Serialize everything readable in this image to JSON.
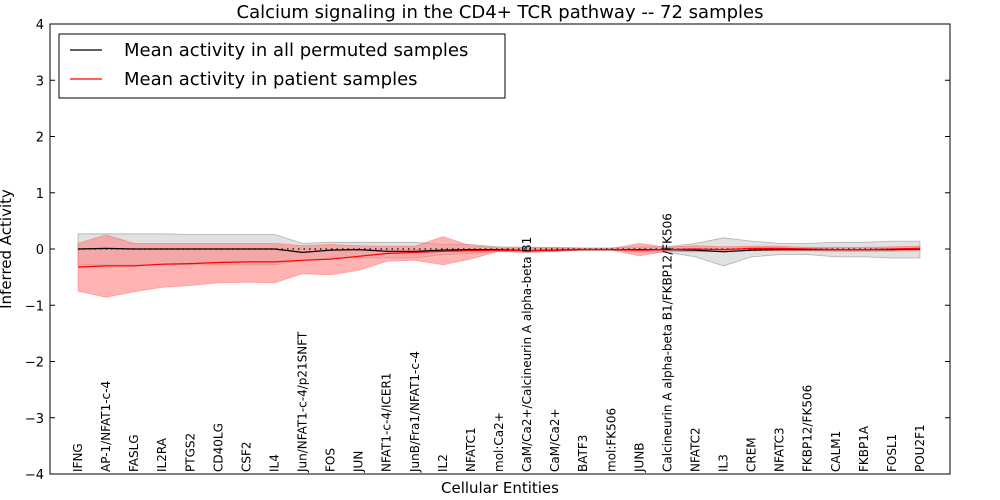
{
  "chart_data": {
    "type": "line",
    "title": "Calcium signaling in the CD4+ TCR pathway -- 72 samples",
    "xlabel": "Cellular Entities",
    "ylabel": "Inferred Activity",
    "ylim": [
      -4,
      4
    ],
    "yticks": [
      -4,
      -3,
      -2,
      -1,
      0,
      1,
      2,
      3,
      4
    ],
    "legend_position": "top-left",
    "colors": {
      "permuted": "#000000",
      "patient": "#ff0000",
      "permuted_band": "#c8c8c8",
      "patient_band": "#ff8080"
    },
    "categories": [
      "IFNG",
      "AP-1/NFAT1-c-4",
      "FASLG",
      "IL2RA",
      "PTGS2",
      "CD40LG",
      "CSF2",
      "IL4",
      "Jun/NFAT1-c-4/p21SNFT",
      "FOS",
      "JUN",
      "NFAT1-c-4/ICER1",
      "JunB/Fra1/NFAT1-c-4",
      "IL2",
      "NFATC1",
      "mol:Ca2+",
      "CaM/Ca2+/Calcineurin A alpha-beta B1",
      "CaM/Ca2+",
      "BATF3",
      "mol:FK506",
      "JUNB",
      "Calcineurin A alpha-beta B1/FKBP12/FK506",
      "NFATC2",
      "IL3",
      "CREM",
      "NFATC3",
      "FKBP12/FK506",
      "CALM1",
      "FKBP1A",
      "FOSL1",
      "POU2F1"
    ],
    "series": [
      {
        "name": "Mean activity in all permuted samples",
        "values": [
          0.0,
          0.01,
          0.0,
          0.0,
          0.0,
          0.0,
          0.0,
          0.0,
          -0.06,
          -0.02,
          -0.01,
          -0.04,
          -0.04,
          -0.02,
          -0.01,
          -0.01,
          -0.03,
          -0.02,
          -0.01,
          -0.01,
          -0.01,
          -0.01,
          -0.02,
          -0.05,
          -0.02,
          -0.01,
          -0.01,
          -0.01,
          -0.01,
          -0.01,
          0.0
        ],
        "lower": [
          -0.28,
          -0.28,
          -0.28,
          -0.28,
          -0.28,
          -0.28,
          -0.28,
          -0.28,
          -0.2,
          -0.16,
          -0.16,
          -0.16,
          -0.16,
          -0.1,
          -0.08,
          -0.04,
          -0.06,
          -0.04,
          -0.02,
          -0.02,
          -0.05,
          -0.06,
          -0.14,
          -0.3,
          -0.14,
          -0.1,
          -0.1,
          -0.14,
          -0.14,
          -0.16,
          -0.16
        ],
        "upper": [
          0.27,
          0.27,
          0.27,
          0.27,
          0.26,
          0.26,
          0.26,
          0.26,
          0.1,
          0.12,
          0.12,
          0.12,
          0.12,
          0.08,
          0.08,
          0.04,
          0.03,
          0.03,
          0.02,
          0.02,
          0.04,
          0.04,
          0.1,
          0.2,
          0.14,
          0.1,
          0.1,
          0.12,
          0.12,
          0.14,
          0.14
        ]
      },
      {
        "name": "Mean activity in patient samples",
        "values": [
          -0.32,
          -0.3,
          -0.3,
          -0.27,
          -0.26,
          -0.24,
          -0.23,
          -0.23,
          -0.2,
          -0.18,
          -0.13,
          -0.08,
          -0.06,
          -0.04,
          -0.03,
          -0.02,
          -0.03,
          -0.02,
          -0.01,
          -0.01,
          -0.02,
          -0.01,
          0.0,
          -0.01,
          0.01,
          0.01,
          0.0,
          -0.01,
          -0.01,
          0.0,
          0.01
        ],
        "lower": [
          -0.75,
          -0.86,
          -0.76,
          -0.68,
          -0.65,
          -0.6,
          -0.59,
          -0.6,
          -0.44,
          -0.46,
          -0.38,
          -0.22,
          -0.2,
          -0.28,
          -0.18,
          -0.04,
          -0.06,
          -0.04,
          -0.02,
          -0.02,
          -0.12,
          -0.04,
          -0.05,
          -0.04,
          -0.03,
          -0.03,
          -0.03,
          -0.04,
          -0.04,
          -0.04,
          -0.03
        ],
        "upper": [
          0.1,
          0.25,
          0.1,
          0.1,
          0.1,
          0.1,
          0.1,
          0.1,
          0.06,
          0.08,
          0.06,
          0.05,
          0.05,
          0.22,
          0.06,
          0.02,
          0.02,
          0.02,
          0.01,
          0.01,
          0.1,
          0.03,
          0.06,
          0.04,
          0.05,
          0.05,
          0.03,
          0.03,
          0.03,
          0.04,
          0.05
        ]
      }
    ]
  }
}
